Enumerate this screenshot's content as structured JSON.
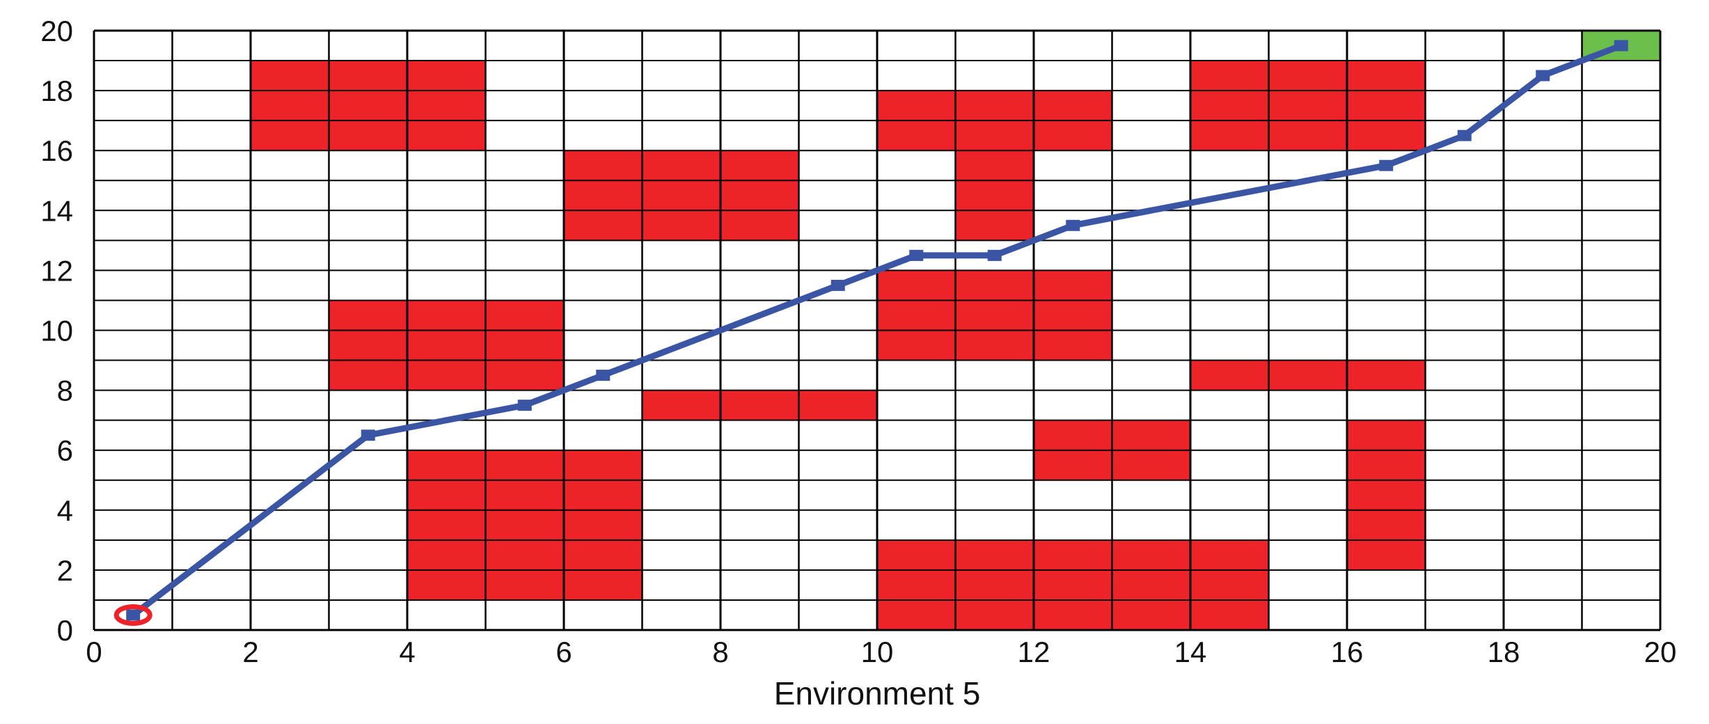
{
  "chart_data": {
    "type": "grid-path",
    "title": "",
    "xlabel": "Environment 5",
    "ylabel": "",
    "xlim": [
      0,
      20
    ],
    "ylim": [
      0,
      20
    ],
    "x_ticks": [
      0,
      2,
      4,
      6,
      8,
      10,
      12,
      14,
      16,
      18,
      20
    ],
    "y_ticks": [
      0,
      2,
      4,
      6,
      8,
      10,
      12,
      14,
      16,
      18,
      20
    ],
    "grid_x_step": 1,
    "grid_y_step": 1,
    "grid": true,
    "obstacles": [
      {
        "x": [
          2,
          5
        ],
        "y": [
          16,
          19
        ]
      },
      {
        "x": [
          6,
          9
        ],
        "y": [
          13,
          16
        ]
      },
      {
        "x": [
          10,
          13
        ],
        "y": [
          16,
          18
        ]
      },
      {
        "x": [
          11,
          12
        ],
        "y": [
          13,
          16
        ]
      },
      {
        "x": [
          14,
          17
        ],
        "y": [
          16,
          19
        ]
      },
      {
        "x": [
          3,
          6
        ],
        "y": [
          8,
          11
        ]
      },
      {
        "x": [
          10,
          13
        ],
        "y": [
          9,
          12
        ]
      },
      {
        "x": [
          7,
          10
        ],
        "y": [
          7,
          8
        ]
      },
      {
        "x": [
          14,
          17
        ],
        "y": [
          8,
          9
        ]
      },
      {
        "x": [
          4,
          7
        ],
        "y": [
          1,
          6
        ]
      },
      {
        "x": [
          12,
          14
        ],
        "y": [
          5,
          7
        ]
      },
      {
        "x": [
          16,
          17
        ],
        "y": [
          2,
          7
        ]
      },
      {
        "x": [
          10,
          15
        ],
        "y": [
          0,
          3
        ]
      }
    ],
    "path": {
      "x": [
        0.5,
        3.5,
        5.5,
        6.5,
        9.5,
        10.5,
        11.5,
        12.5,
        16.5,
        17.5,
        18.5,
        19.5
      ],
      "y": [
        0.5,
        6.5,
        7.5,
        8.5,
        11.5,
        12.5,
        12.5,
        13.5,
        15.5,
        16.5,
        18.5,
        19.5
      ]
    },
    "start": {
      "x": 0.5,
      "y": 0.5
    },
    "goal": {
      "x": 19.5,
      "y": 19.5
    },
    "colors": {
      "obstacle": "#ee2229",
      "path": "#3b55a5",
      "start": "#ee2229",
      "goal": "#6cbf4b",
      "grid": "#000000",
      "background": "#ffffff"
    }
  }
}
